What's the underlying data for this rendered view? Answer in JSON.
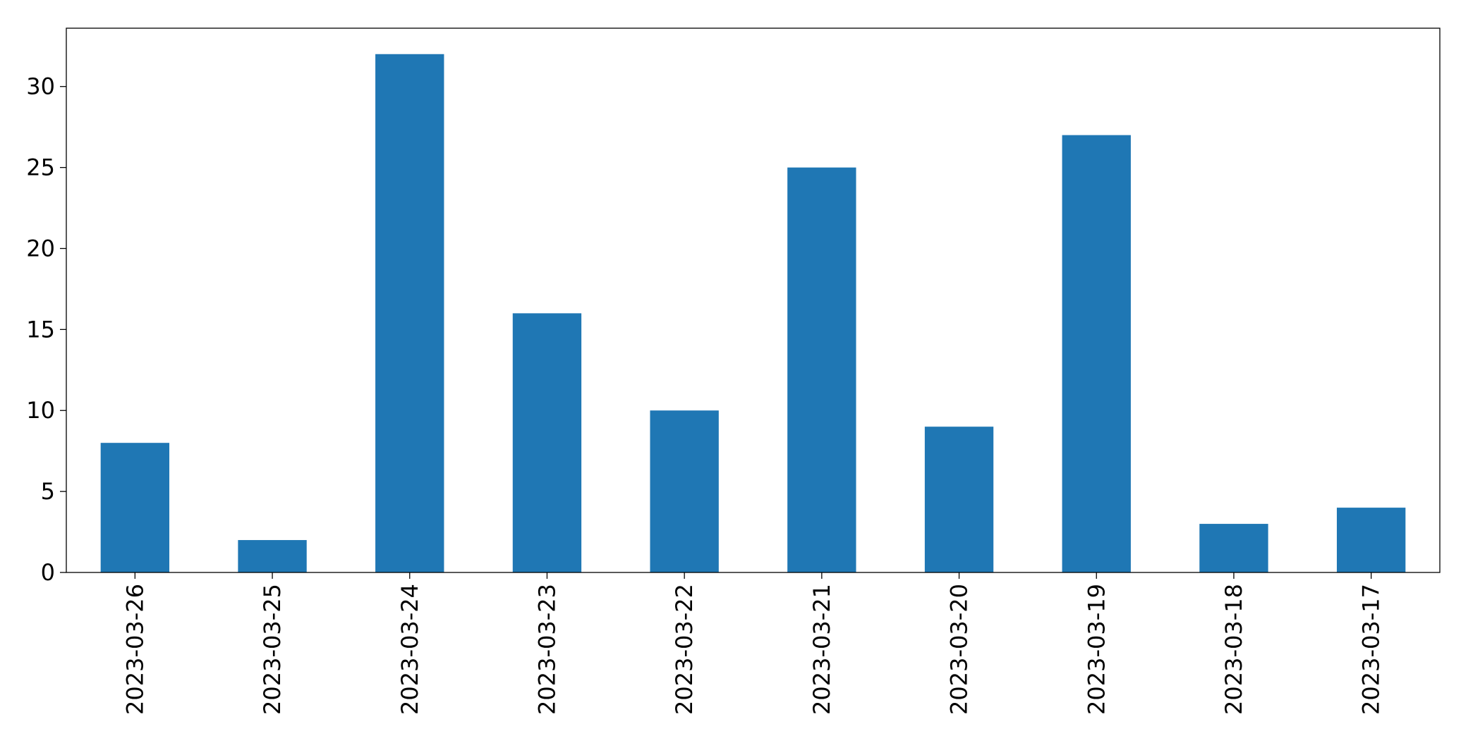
{
  "chart_data": {
    "type": "bar",
    "categories": [
      "2023-03-26",
      "2023-03-25",
      "2023-03-24",
      "2023-03-23",
      "2023-03-22",
      "2023-03-21",
      "2023-03-20",
      "2023-03-19",
      "2023-03-18",
      "2023-03-17"
    ],
    "values": [
      8,
      2,
      32,
      16,
      10,
      25,
      9,
      27,
      3,
      4
    ],
    "color": "#1f77b4",
    "ylim": [
      0,
      33.6
    ],
    "yticks": [
      0,
      5,
      10,
      15,
      20,
      25,
      30
    ],
    "grid": false
  }
}
